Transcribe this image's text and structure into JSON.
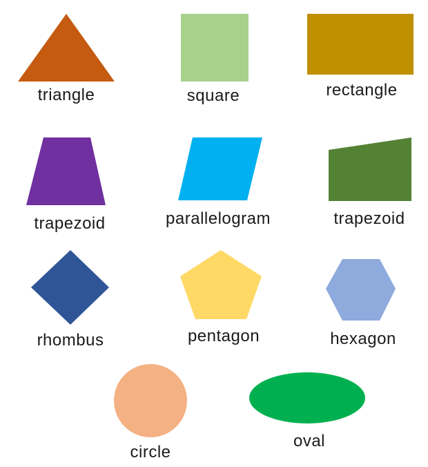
{
  "shapes": [
    {
      "id": "triangle",
      "label": "triangle",
      "color": "#C55A11"
    },
    {
      "id": "square",
      "label": "square",
      "color": "#A9D18E"
    },
    {
      "id": "rectangle",
      "label": "rectangle",
      "color": "#BF9000"
    },
    {
      "id": "trapezoid-1",
      "label": "trapezoid",
      "color": "#7030A0"
    },
    {
      "id": "parallelogram",
      "label": "parallelogram",
      "color": "#00B0F0"
    },
    {
      "id": "trapezoid-2",
      "label": "trapezoid",
      "color": "#548235"
    },
    {
      "id": "rhombus",
      "label": "rhombus",
      "color": "#2F5597"
    },
    {
      "id": "pentagon",
      "label": "pentagon",
      "color": "#FFD966"
    },
    {
      "id": "hexagon",
      "label": "hexagon",
      "color": "#8FAADC"
    },
    {
      "id": "circle",
      "label": "circle",
      "color": "#F4B183"
    },
    {
      "id": "oval",
      "label": "oval",
      "color": "#00B050"
    }
  ]
}
